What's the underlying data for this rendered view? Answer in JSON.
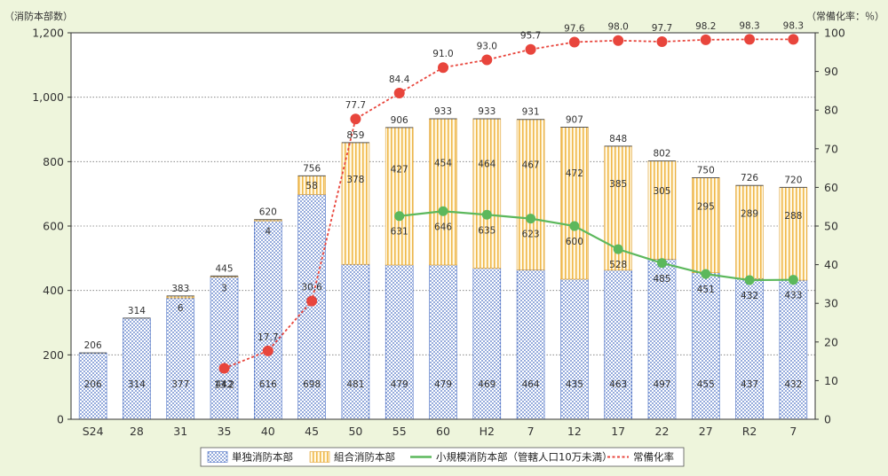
{
  "chart_data": {
    "type": "bar+line",
    "categories": [
      "S24",
      "28",
      "31",
      "35",
      "40",
      "45",
      "50",
      "55",
      "60",
      "H2",
      "7",
      "12",
      "17",
      "22",
      "27",
      "R2",
      "7"
    ],
    "left_axis": {
      "label": "（消防本部数）",
      "min": 0,
      "max": 1200,
      "ticks": [
        0,
        200,
        400,
        600,
        800,
        1000,
        1200
      ],
      "tick_labels": [
        "0",
        "200",
        "400",
        "600",
        "800",
        "1,000",
        "1,200"
      ]
    },
    "right_axis": {
      "label": "（常備化率：％）",
      "min": 0,
      "max": 100,
      "ticks": [
        0,
        10,
        20,
        30,
        40,
        50,
        60,
        70,
        80,
        90,
        100
      ],
      "tick_labels": [
        "0",
        "10",
        "20",
        "30",
        "40",
        "50",
        "60",
        "70",
        "80",
        "90",
        "100"
      ]
    },
    "grid": true,
    "legend_position": "bottom",
    "bar_series": [
      {
        "name": "単独消防本部",
        "color": "#4a6fc4",
        "values": [
          206,
          314,
          377,
          442,
          616,
          698,
          481,
          479,
          479,
          469,
          464,
          435,
          463,
          497,
          455,
          437,
          432
        ]
      },
      {
        "name": "組合消防本部",
        "color": "#f0b84a",
        "values": [
          null,
          null,
          6,
          3,
          4,
          58,
          378,
          427,
          454,
          464,
          467,
          472,
          385,
          305,
          295,
          289,
          288
        ]
      }
    ],
    "totals": [
      206,
      314,
      383,
      445,
      620,
      756,
      859,
      906,
      933,
      933,
      931,
      907,
      848,
      802,
      750,
      726,
      720
    ],
    "line_series": [
      {
        "name": "小規模消防本部（管轄人口10万未満）",
        "axis": "left",
        "color": "#5cb85c",
        "values": [
          null,
          null,
          null,
          null,
          null,
          null,
          null,
          631,
          646,
          635,
          623,
          600,
          528,
          485,
          451,
          432,
          433
        ]
      },
      {
        "name": "常備化率",
        "axis": "right",
        "color": "#e8453c",
        "values": [
          null,
          null,
          null,
          13.2,
          17.7,
          30.6,
          77.7,
          84.4,
          91.0,
          93.0,
          95.7,
          97.6,
          98.0,
          97.7,
          98.2,
          98.3,
          98.3
        ]
      }
    ]
  }
}
